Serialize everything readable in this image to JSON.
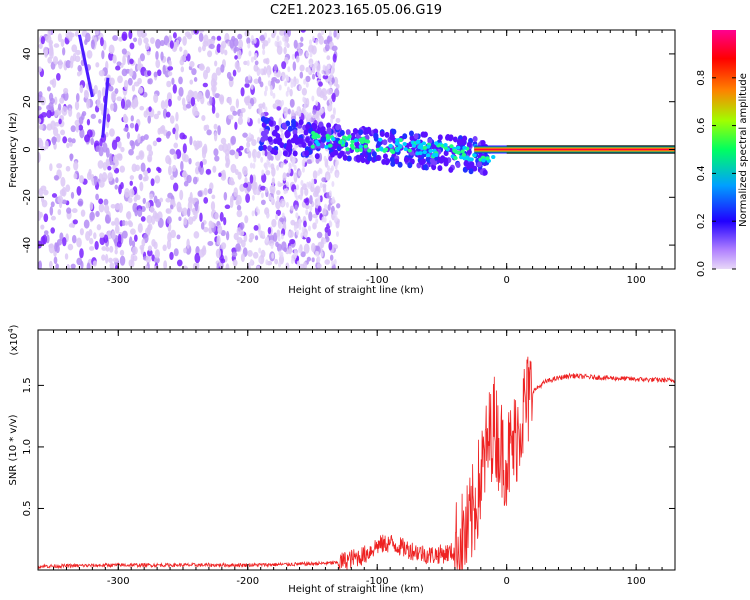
{
  "title": "C2E1.2023.165.05.06.G19",
  "chart_data": [
    {
      "type": "heatmap",
      "xlabel": "Height of straight line (km)",
      "ylabel": "Frequency (Hz)",
      "xlim": [
        -362,
        130
      ],
      "ylim": [
        -50,
        50
      ],
      "xticks": [
        -300,
        -200,
        -100,
        0,
        100
      ],
      "yticks": [
        -40,
        -20,
        0,
        20,
        40
      ],
      "colorbar": {
        "label": "Normalized spectral amplitude",
        "range": [
          0,
          1
        ],
        "ticks": [
          0.0,
          0.2,
          0.4,
          0.6,
          0.8
        ],
        "colors": [
          "#e8d8f8",
          "#7a00ff",
          "#0000ff",
          "#00c8ff",
          "#00ff40",
          "#c8ff00",
          "#ff8000",
          "#ff0000",
          "#ff0080"
        ]
      },
      "regions": [
        {
          "x": [
            -362,
            -135
          ],
          "frequency_spread": [
            -50,
            50
          ],
          "amplitude": 0.1
        },
        {
          "x": [
            -190,
            -20
          ],
          "frequency_center": [
            6,
            -5
          ],
          "frequency_spread": 8,
          "amplitude": 0.3
        },
        {
          "x": [
            -20,
            130
          ],
          "frequency_center": 0,
          "frequency_spread": 1,
          "amplitude": 0.95
        }
      ]
    },
    {
      "type": "line",
      "xlabel": "Height of straight line (km)",
      "ylabel": "SNR (10 * v/v)",
      "yscale_label": "(x10",
      "yscale_exponent": "4",
      "yscale_close": ")",
      "xlim": [
        -362,
        130
      ],
      "ylim": [
        0,
        1.95
      ],
      "xticks": [
        -300,
        -200,
        -100,
        0,
        100
      ],
      "yticks": [
        0.5,
        1.0,
        1.5
      ],
      "series": [
        {
          "color": "#ee2222",
          "x": [
            -362,
            -300,
            -250,
            -200,
            -150,
            -130,
            -110,
            -100,
            -90,
            -80,
            -70,
            -60,
            -50,
            -40,
            -30,
            -25,
            -20,
            -15,
            -10,
            -5,
            0,
            5,
            10,
            15,
            20,
            30,
            40,
            50,
            60,
            80,
            100,
            130
          ],
          "y": [
            0.03,
            0.04,
            0.04,
            0.04,
            0.05,
            0.06,
            0.12,
            0.2,
            0.22,
            0.18,
            0.15,
            0.12,
            0.13,
            0.15,
            0.3,
            0.5,
            0.75,
            1.0,
            1.2,
            1.0,
            0.9,
            1.0,
            1.2,
            1.35,
            1.45,
            1.53,
            1.56,
            1.58,
            1.57,
            1.56,
            1.55,
            1.54
          ]
        }
      ]
    }
  ]
}
